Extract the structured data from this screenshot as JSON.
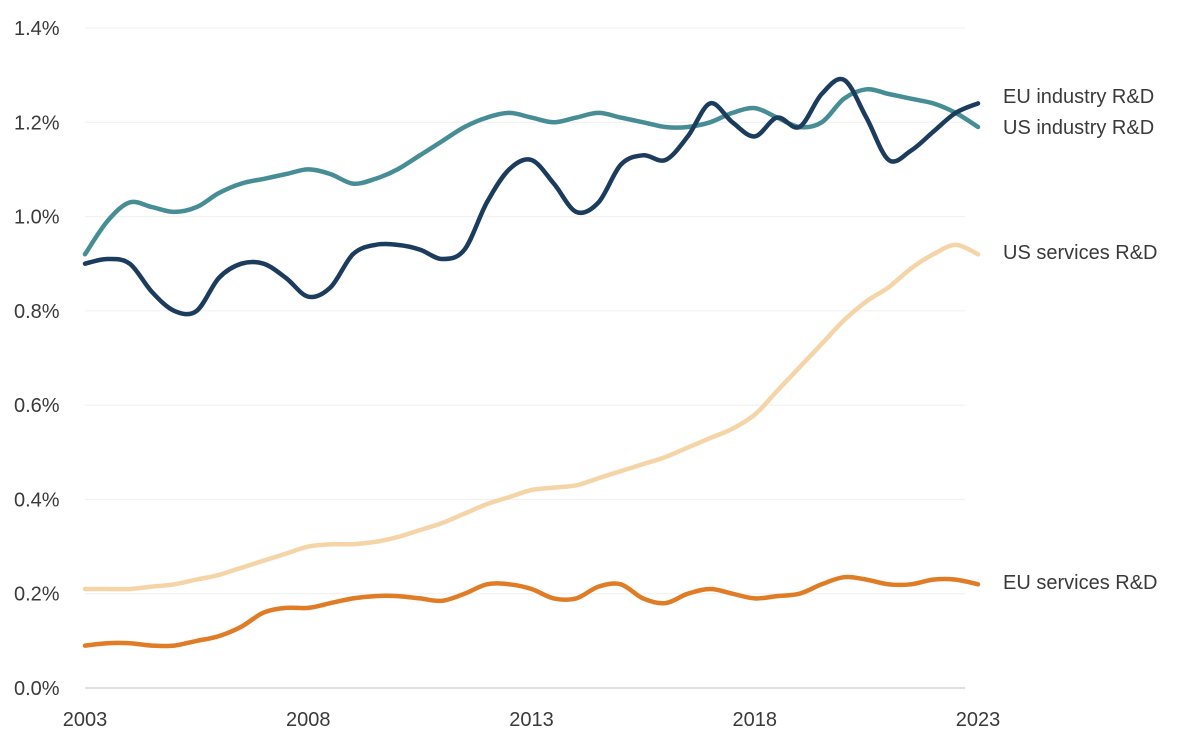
{
  "colors": {
    "background": "#ffffff",
    "axis_text": "#3a3a3a",
    "grid": "#efefef",
    "axis_line": "#bfbfbf"
  },
  "chart_data": {
    "type": "line",
    "title": "",
    "xlabel": "",
    "ylabel": "",
    "grid": true,
    "legend_position": "right-of-lines",
    "xlim": [
      2003,
      2023
    ],
    "ylim": [
      0,
      1.4
    ],
    "x_ticks": [
      2003,
      2008,
      2013,
      2018,
      2023
    ],
    "x_tick_labels": [
      "2003",
      "2008",
      "2013",
      "2018",
      "2023"
    ],
    "y_ticks": [
      0,
      0.2,
      0.4,
      0.6,
      0.8,
      1.0,
      1.2,
      1.4
    ],
    "y_tick_labels": [
      "0.0%",
      "0.2%",
      "0.4%",
      "0.6%",
      "0.8%",
      "1.0%",
      "1.2%",
      "1.4%"
    ],
    "x": [
      2003,
      2003.5,
      2004,
      2004.5,
      2005,
      2005.5,
      2006,
      2006.5,
      2007,
      2007.5,
      2008,
      2008.5,
      2009,
      2009.5,
      2010,
      2010.5,
      2011,
      2011.5,
      2012,
      2012.5,
      2013,
      2013.5,
      2014,
      2014.5,
      2015,
      2015.5,
      2016,
      2016.5,
      2017,
      2017.5,
      2018,
      2018.5,
      2019,
      2019.5,
      2020,
      2020.5,
      2021,
      2021.5,
      2022,
      2022.5,
      2023
    ],
    "series": [
      {
        "name": "EU industry R&D",
        "color": "#478d95",
        "values": [
          0.92,
          0.99,
          1.03,
          1.02,
          1.01,
          1.02,
          1.05,
          1.07,
          1.08,
          1.09,
          1.1,
          1.09,
          1.07,
          1.08,
          1.1,
          1.13,
          1.16,
          1.19,
          1.21,
          1.22,
          1.21,
          1.2,
          1.21,
          1.22,
          1.21,
          1.2,
          1.19,
          1.19,
          1.2,
          1.22,
          1.23,
          1.21,
          1.19,
          1.2,
          1.25,
          1.27,
          1.26,
          1.25,
          1.24,
          1.22,
          1.19
        ]
      },
      {
        "name": "US industry R&D",
        "color": "#1c3c5e",
        "values": [
          0.9,
          0.91,
          0.9,
          0.84,
          0.8,
          0.8,
          0.87,
          0.9,
          0.9,
          0.87,
          0.83,
          0.85,
          0.92,
          0.94,
          0.94,
          0.93,
          0.91,
          0.93,
          1.03,
          1.1,
          1.12,
          1.07,
          1.01,
          1.03,
          1.11,
          1.13,
          1.12,
          1.17,
          1.24,
          1.2,
          1.17,
          1.21,
          1.19,
          1.26,
          1.29,
          1.21,
          1.12,
          1.14,
          1.18,
          1.22,
          1.24
        ]
      },
      {
        "name": "US services R&D",
        "color": "#f5d5a8",
        "values": [
          0.21,
          0.21,
          0.21,
          0.215,
          0.22,
          0.23,
          0.24,
          0.255,
          0.27,
          0.285,
          0.3,
          0.305,
          0.305,
          0.31,
          0.32,
          0.335,
          0.35,
          0.37,
          0.39,
          0.405,
          0.42,
          0.425,
          0.43,
          0.445,
          0.46,
          0.475,
          0.49,
          0.51,
          0.53,
          0.55,
          0.58,
          0.63,
          0.68,
          0.73,
          0.78,
          0.82,
          0.85,
          0.89,
          0.92,
          0.94,
          0.92
        ]
      },
      {
        "name": "EU services R&D",
        "color": "#e07c26",
        "values": [
          0.09,
          0.095,
          0.095,
          0.09,
          0.09,
          0.1,
          0.11,
          0.13,
          0.16,
          0.17,
          0.17,
          0.18,
          0.19,
          0.195,
          0.195,
          0.19,
          0.185,
          0.2,
          0.22,
          0.22,
          0.21,
          0.19,
          0.19,
          0.215,
          0.22,
          0.19,
          0.18,
          0.2,
          0.21,
          0.2,
          0.19,
          0.195,
          0.2,
          0.22,
          0.235,
          0.23,
          0.22,
          0.22,
          0.23,
          0.23,
          0.22
        ]
      }
    ]
  }
}
